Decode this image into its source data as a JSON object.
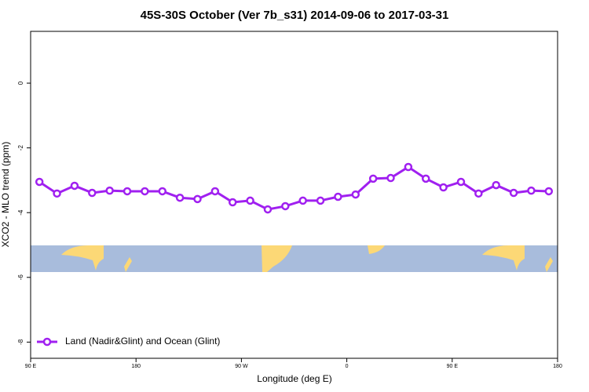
{
  "chart_data": {
    "type": "line",
    "title": "45S-30S October (Ver 7b_s31)   2014-09-06 to 2017-03-31",
    "xlabel": "Longitude (deg E)",
    "ylabel": "XCO2 - MLO trend (ppm)",
    "xlim": [
      90,
      540
    ],
    "ylim": [
      -8.5,
      1.6
    ],
    "xticks": [
      {
        "value": 90,
        "label": "90 E"
      },
      180,
      {
        "value": 270,
        "label": "90 W"
      },
      {
        "value": 360,
        "label": "0"
      },
      {
        "value": 450,
        "label": "90 E"
      },
      {
        "value": 540,
        "label": "180"
      }
    ],
    "yticks": [
      0,
      -2,
      -4,
      -6,
      -8
    ],
    "legend": "bottom-left",
    "series": [
      {
        "name": "Land (Nadir&Glint) and Ocean (Glint)",
        "color": "#a020f0",
        "x": [
          97.5,
          112.5,
          127.5,
          142.5,
          157.5,
          172.5,
          187.5,
          202.5,
          217.5,
          232.5,
          247.5,
          262.5,
          277.5,
          292.5,
          307.5,
          322.5,
          337.5,
          352.5,
          367.5,
          382.5,
          397.5,
          412.5,
          427.5,
          442.5,
          457.5,
          472.5,
          487.5,
          502.5,
          517.5,
          532.5
        ],
        "values": [
          -3.05,
          -3.41,
          -3.17,
          -3.39,
          -3.32,
          -3.34,
          -3.34,
          -3.34,
          -3.54,
          -3.58,
          -3.34,
          -3.68,
          -3.63,
          -3.9,
          -3.8,
          -3.63,
          -3.63,
          -3.51,
          -3.44,
          -2.95,
          -2.93,
          -2.59,
          -2.95,
          -3.22,
          -3.05,
          -3.41,
          -3.15,
          -3.39,
          -3.32,
          -3.34
        ]
      }
    ]
  }
}
